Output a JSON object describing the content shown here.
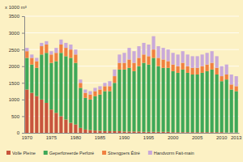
{
  "chart_data": {
    "type": "bar",
    "stacked": true,
    "grid": true,
    "legend": "bottom",
    "y_label": "x 1000 m³",
    "categories": [
      1970,
      null,
      null,
      null,
      null,
      1975,
      null,
      null,
      null,
      null,
      1980,
      null,
      null,
      null,
      null,
      1985,
      null,
      null,
      null,
      null,
      1990,
      null,
      null,
      null,
      null,
      1995,
      null,
      null,
      null,
      null,
      2000,
      null,
      null,
      null,
      null,
      2005,
      null,
      null,
      null,
      null,
      2010,
      null,
      null,
      2013
    ],
    "ylim": [
      0,
      3500
    ],
    "yticks": [
      0,
      500,
      1000,
      1500,
      2000,
      2500,
      3000,
      3500
    ],
    "series": [
      {
        "name": "Volle Pleine",
        "color": "#c8553d",
        "values": [
          1300,
          1200,
          1100,
          1000,
          900,
          700,
          600,
          500,
          400,
          300,
          250,
          150,
          100,
          80,
          70,
          60,
          50,
          50,
          50,
          50,
          40,
          40,
          40,
          40,
          30,
          30,
          30,
          30,
          30,
          30,
          20,
          20,
          20,
          20,
          20,
          20,
          20,
          20,
          20,
          20,
          20,
          10,
          10,
          10
        ]
      },
      {
        "name": "Geperforeerde Perforé",
        "color": "#3fa858",
        "values": [
          950,
          850,
          850,
          1350,
          1500,
          1400,
          1550,
          1900,
          1900,
          1950,
          1850,
          1200,
          950,
          920,
          1030,
          1090,
          1200,
          1200,
          1450,
          1850,
          1860,
          1910,
          1810,
          1960,
          2070,
          2020,
          2220,
          1970,
          1920,
          1920,
          1830,
          1780,
          1880,
          1780,
          1730,
          1730,
          1780,
          1830,
          1880,
          1730,
          1530,
          1590,
          1290,
          1240
        ]
      },
      {
        "name": "Strengpers Étiré",
        "color": "#f08040",
        "values": [
          200,
          200,
          200,
          250,
          250,
          250,
          250,
          250,
          250,
          250,
          250,
          150,
          150,
          150,
          150,
          150,
          150,
          150,
          200,
          200,
          200,
          250,
          250,
          250,
          250,
          250,
          250,
          250,
          250,
          200,
          200,
          200,
          200,
          200,
          200,
          200,
          200,
          200,
          200,
          200,
          150,
          150,
          150,
          150
        ]
      },
      {
        "name": "Handvorm Fait-main",
        "color": "#c9a9d9",
        "values": [
          100,
          100,
          100,
          100,
          100,
          100,
          150,
          150,
          150,
          150,
          150,
          100,
          100,
          100,
          100,
          100,
          100,
          150,
          200,
          250,
          300,
          350,
          350,
          350,
          350,
          350,
          400,
          350,
          350,
          350,
          350,
          350,
          350,
          350,
          350,
          350,
          350,
          350,
          350,
          350,
          300,
          300,
          300,
          300
        ]
      }
    ]
  }
}
